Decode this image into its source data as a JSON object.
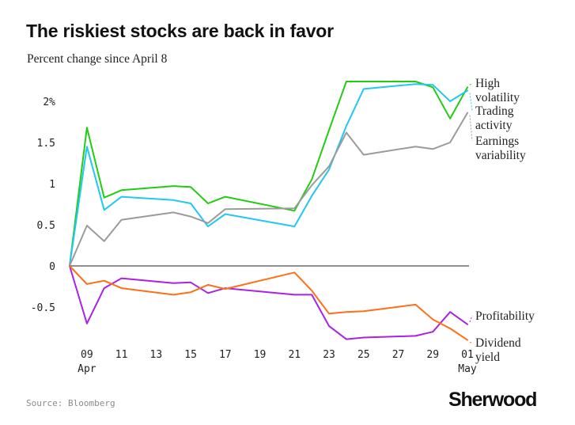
{
  "header": {
    "title": "The riskiest stocks are back in favor",
    "subtitle": "Percent change since April 8"
  },
  "footer": {
    "source": "Source: Bloomberg",
    "brand": "Sherwood"
  },
  "chart_data": {
    "type": "line",
    "title": "The riskiest stocks are back in favor",
    "subtitle": "Percent change since April 8",
    "x": [
      "2025-04-08",
      "2025-04-09",
      "2025-04-10",
      "2025-04-11",
      "2025-04-14",
      "2025-04-15",
      "2025-04-16",
      "2025-04-17",
      "2025-04-21",
      "2025-04-22",
      "2025-04-23",
      "2025-04-24",
      "2025-04-25",
      "2025-04-28",
      "2025-04-29",
      "2025-04-30",
      "2025-05-01"
    ],
    "x_ticks": [
      {
        "x": "2025-04-09",
        "label": "09",
        "sub": "Apr"
      },
      {
        "x": "2025-04-11",
        "label": "11"
      },
      {
        "x": "2025-04-13",
        "label": "13"
      },
      {
        "x": "2025-04-15",
        "label": "15"
      },
      {
        "x": "2025-04-17",
        "label": "17"
      },
      {
        "x": "2025-04-19",
        "label": "19"
      },
      {
        "x": "2025-04-21",
        "label": "21"
      },
      {
        "x": "2025-04-23",
        "label": "23"
      },
      {
        "x": "2025-04-25",
        "label": "25"
      },
      {
        "x": "2025-04-27",
        "label": "27"
      },
      {
        "x": "2025-04-29",
        "label": "29"
      },
      {
        "x": "2025-05-01",
        "label": "01",
        "sub": "May"
      }
    ],
    "y_ticks": [
      {
        "value": 2,
        "label": "2%"
      },
      {
        "value": 1.5,
        "label": "1.5"
      },
      {
        "value": 1,
        "label": "1"
      },
      {
        "value": 0.5,
        "label": "0.5"
      },
      {
        "value": 0,
        "label": "0"
      },
      {
        "value": -0.5,
        "label": "-0.5"
      }
    ],
    "ylim": [
      -0.95,
      2.3
    ],
    "grid": false,
    "zero_line": true,
    "series": [
      {
        "name": "High volatility",
        "label_lines": [
          "High",
          "volatility"
        ],
        "color": "#22cc11",
        "values": [
          0,
          1.68,
          0.83,
          0.92,
          0.97,
          0.96,
          0.76,
          0.84,
          0.67,
          1.05,
          1.65,
          2.24,
          2.24,
          2.24,
          2.17,
          1.79,
          2.17
        ]
      },
      {
        "name": "Trading activity",
        "label_lines": [
          "Trading",
          "activity"
        ],
        "color": "#22c7f2",
        "values": [
          0,
          1.45,
          0.68,
          0.84,
          0.8,
          0.76,
          0.48,
          0.63,
          0.48,
          0.85,
          1.17,
          1.7,
          2.15,
          2.21,
          2.2,
          2.0,
          2.13
        ]
      },
      {
        "name": "Earnings variability",
        "label_lines": [
          "Earnings",
          "variability"
        ],
        "color": "#9b9b9b",
        "values": [
          0,
          0.49,
          0.3,
          0.56,
          0.65,
          0.6,
          0.52,
          0.69,
          0.7,
          0.98,
          1.21,
          1.62,
          1.35,
          1.45,
          1.42,
          1.5,
          1.86
        ]
      },
      {
        "name": "Profitability",
        "label_lines": [
          "Profitability"
        ],
        "color": "#aa22e6",
        "values": [
          0,
          -0.7,
          -0.27,
          -0.15,
          -0.21,
          -0.2,
          -0.33,
          -0.27,
          -0.35,
          -0.35,
          -0.73,
          -0.89,
          -0.87,
          -0.85,
          -0.8,
          -0.56,
          -0.71
        ]
      },
      {
        "name": "Dividend yield",
        "label_lines": [
          "Dividend",
          "yield"
        ],
        "color": "#ff6f18",
        "values": [
          0,
          -0.22,
          -0.18,
          -0.27,
          -0.35,
          -0.32,
          -0.23,
          -0.28,
          -0.08,
          -0.3,
          -0.58,
          -0.56,
          -0.55,
          -0.47,
          -0.65,
          -0.76,
          -0.9
        ]
      }
    ]
  }
}
